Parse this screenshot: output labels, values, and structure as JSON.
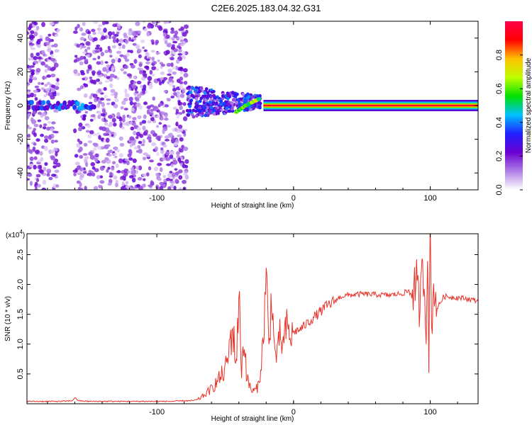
{
  "title": "C2E6.2025.183.04.32.G31",
  "chart_data": [
    {
      "type": "heatmap",
      "xlabel": "Height of straight line (km)",
      "ylabel": "Frequency (Hz)",
      "xlim": [
        -195,
        135
      ],
      "ylim": [
        -50,
        50
      ],
      "xticks": [
        -100,
        0,
        100
      ],
      "yticks": [
        -40,
        -20,
        0,
        20,
        40
      ],
      "colorbar": {
        "label": "Normalized spectral amplitude",
        "range": [
          0,
          1
        ],
        "ticks": [
          "0.0",
          "0.2",
          "0.4",
          "0.6",
          "0.8"
        ],
        "tick_values": [
          0.0,
          0.2,
          0.4,
          0.6,
          0.8
        ],
        "colors": [
          "#ffffff",
          "#b07fe6",
          "#6a00d0",
          "#2020ff",
          "#00c0ff",
          "#00e000",
          "#c0ff00",
          "#ffc000",
          "#ff0000",
          "#ff004a"
        ]
      },
      "features": [
        {
          "name": "scattered noise",
          "x_range": [
            -195,
            -78
          ],
          "freq_range": [
            -50,
            50
          ],
          "amplitude": 0.12
        },
        {
          "name": "blank gap",
          "x_range": [
            -172,
            -160
          ]
        },
        {
          "name": "early line",
          "x_range": [
            -195,
            -145
          ],
          "freq": 0,
          "amplitude": 0.4
        },
        {
          "name": "broadened trace",
          "x_range": [
            -78,
            -24
          ],
          "freq_range": [
            -12,
            12
          ],
          "amplitude": 0.35
        },
        {
          "name": "drifting line",
          "x_points": [
            -42,
            -35,
            -30,
            -25
          ],
          "freq_points": [
            -4,
            0,
            2,
            4
          ],
          "amplitude": 0.7
        },
        {
          "name": "main line",
          "x_range": [
            -22,
            135
          ],
          "freq": 0,
          "amplitude": 0.95
        }
      ]
    },
    {
      "type": "line",
      "xlabel": "Height of straight line (km)",
      "ylabel": "SNR (10 * v/v)",
      "multiplier": "(x10^4)",
      "xlim": [
        -195,
        135
      ],
      "ylim": [
        0,
        2.85
      ],
      "xticks": [
        -100,
        0,
        100
      ],
      "yticks": [
        0.5,
        1.0,
        1.5,
        2.0,
        2.5
      ],
      "series": [
        {
          "color": "#e8332a",
          "x": [
            -195,
            -170,
            -162,
            -160,
            -157,
            -150,
            -120,
            -90,
            -80,
            -75,
            -70,
            -65,
            -60,
            -55,
            -50,
            -47,
            -45,
            -42,
            -40,
            -38,
            -36,
            -34,
            -32,
            -30,
            -27,
            -25,
            -22,
            -20,
            -18,
            -16,
            -14,
            -12,
            -10,
            -8,
            -5,
            -2,
            0,
            5,
            10,
            15,
            20,
            25,
            30,
            35,
            40,
            50,
            60,
            70,
            80,
            85,
            90,
            92,
            95,
            97,
            98,
            99,
            100,
            101,
            103,
            105,
            110,
            120,
            130,
            135
          ],
          "y": [
            0.04,
            0.04,
            0.05,
            0.1,
            0.05,
            0.04,
            0.04,
            0.04,
            0.05,
            0.05,
            0.07,
            0.15,
            0.25,
            0.4,
            0.55,
            0.9,
            1.3,
            0.7,
            1.75,
            0.6,
            1.1,
            0.4,
            0.3,
            0.2,
            0.25,
            0.35,
            1.1,
            2.22,
            0.9,
            1.9,
            0.9,
            0.8,
            1.15,
            0.95,
            1.3,
            1.1,
            1.2,
            1.25,
            1.35,
            1.45,
            1.55,
            1.65,
            1.72,
            1.8,
            1.82,
            1.84,
            1.83,
            1.82,
            1.85,
            1.9,
            2.0,
            1.6,
            2.3,
            1.2,
            2.85,
            0.65,
            2.75,
            1.3,
            2.0,
            1.6,
            1.8,
            1.78,
            1.75,
            1.72
          ]
        }
      ]
    }
  ]
}
